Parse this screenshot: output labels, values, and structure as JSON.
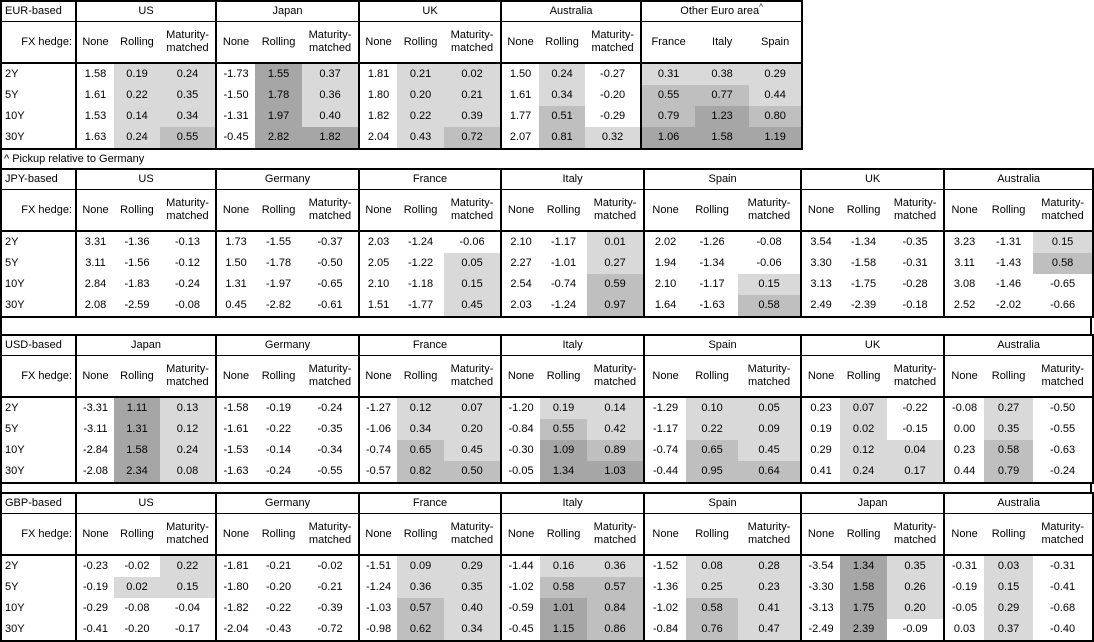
{
  "footnote": "^ Pickup relative to Germany",
  "fx_hedge_label": "FX hedge:",
  "tenors": [
    "2Y",
    "5Y",
    "10Y",
    "30Y"
  ],
  "default_hedge_cols": [
    "None",
    "Rolling",
    "Maturity-matched"
  ],
  "shade_colors": {
    "light": "#d9d9d9",
    "medium": "#bfbfbf",
    "dark": "#a6a6a6"
  },
  "tables": [
    {
      "base": "EUR-based",
      "groups": [
        {
          "name": "US",
          "rows": [
            [
              1.58,
              0.19,
              0.24
            ],
            [
              1.61,
              0.22,
              0.35
            ],
            [
              1.53,
              0.14,
              0.34
            ],
            [
              1.63,
              0.24,
              0.55
            ]
          ]
        },
        {
          "name": "Japan",
          "rows": [
            [
              -1.73,
              1.55,
              0.37
            ],
            [
              -1.5,
              1.78,
              0.36
            ],
            [
              -1.31,
              1.97,
              0.4
            ],
            [
              -0.45,
              2.82,
              1.82
            ]
          ]
        },
        {
          "name": "UK",
          "rows": [
            [
              1.81,
              0.21,
              0.02
            ],
            [
              1.8,
              0.2,
              0.21
            ],
            [
              1.82,
              0.22,
              0.39
            ],
            [
              2.04,
              0.43,
              0.72
            ]
          ]
        },
        {
          "name": "Australia",
          "rows": [
            [
              1.5,
              0.24,
              -0.27
            ],
            [
              1.61,
              0.34,
              -0.2
            ],
            [
              1.77,
              0.51,
              -0.29
            ],
            [
              2.07,
              0.81,
              0.32
            ]
          ]
        },
        {
          "name": "Other Euro area",
          "sup": "^",
          "cols": [
            "France",
            "Italy",
            "Spain"
          ],
          "equal_cols": true,
          "shade_all": true,
          "rows": [
            [
              0.31,
              0.38,
              0.29
            ],
            [
              0.55,
              0.77,
              0.44
            ],
            [
              0.79,
              1.23,
              0.8
            ],
            [
              1.06,
              1.58,
              1.19
            ]
          ]
        }
      ]
    },
    {
      "base": "JPY-based",
      "groups": [
        {
          "name": "US",
          "rows": [
            [
              3.31,
              -1.36,
              -0.13
            ],
            [
              3.11,
              -1.56,
              -0.12
            ],
            [
              2.84,
              -1.83,
              -0.24
            ],
            [
              2.08,
              -2.59,
              -0.08
            ]
          ]
        },
        {
          "name": "Germany",
          "rows": [
            [
              1.73,
              -1.55,
              -0.37
            ],
            [
              1.5,
              -1.78,
              -0.5
            ],
            [
              1.31,
              -1.97,
              -0.65
            ],
            [
              0.45,
              -2.82,
              -0.61
            ]
          ]
        },
        {
          "name": "France",
          "rows": [
            [
              2.03,
              -1.24,
              -0.06
            ],
            [
              2.05,
              -1.22,
              0.05
            ],
            [
              2.1,
              -1.18,
              0.15
            ],
            [
              1.51,
              -1.77,
              0.45
            ]
          ]
        },
        {
          "name": "Italy",
          "rows": [
            [
              2.1,
              -1.17,
              0.01
            ],
            [
              2.27,
              -1.01,
              0.27
            ],
            [
              2.54,
              -0.74,
              0.59
            ],
            [
              2.03,
              -1.24,
              0.97
            ]
          ]
        },
        {
          "name": "Spain",
          "rows": [
            [
              2.02,
              -1.26,
              -0.08
            ],
            [
              1.94,
              -1.34,
              -0.06
            ],
            [
              2.1,
              -1.17,
              0.15
            ],
            [
              1.64,
              -1.63,
              0.58
            ]
          ]
        },
        {
          "name": "UK",
          "rows": [
            [
              3.54,
              -1.34,
              -0.35
            ],
            [
              3.3,
              -1.58,
              -0.31
            ],
            [
              3.13,
              -1.75,
              -0.28
            ],
            [
              2.49,
              -2.39,
              -0.18
            ]
          ]
        },
        {
          "name": "Australia",
          "rows": [
            [
              3.23,
              -1.31,
              0.15
            ],
            [
              3.11,
              -1.43,
              0.58
            ],
            [
              3.08,
              -1.46,
              -0.65
            ],
            [
              2.52,
              -2.02,
              -0.66
            ]
          ]
        }
      ]
    },
    {
      "base": "USD-based",
      "groups": [
        {
          "name": "Japan",
          "rows": [
            [
              -3.31,
              1.11,
              0.13
            ],
            [
              -3.11,
              1.31,
              0.12
            ],
            [
              -2.84,
              1.58,
              0.24
            ],
            [
              -2.08,
              2.34,
              0.08
            ]
          ]
        },
        {
          "name": "Germany",
          "rows": [
            [
              -1.58,
              -0.19,
              -0.24
            ],
            [
              -1.61,
              -0.22,
              -0.35
            ],
            [
              -1.53,
              -0.14,
              -0.34
            ],
            [
              -1.63,
              -0.24,
              -0.55
            ]
          ]
        },
        {
          "name": "France",
          "rows": [
            [
              -1.27,
              0.12,
              0.07
            ],
            [
              -1.06,
              0.34,
              0.2
            ],
            [
              -0.74,
              0.65,
              0.45
            ],
            [
              -0.57,
              0.82,
              0.5
            ]
          ]
        },
        {
          "name": "Italy",
          "rows": [
            [
              -1.2,
              0.19,
              0.14
            ],
            [
              -0.84,
              0.55,
              0.42
            ],
            [
              -0.3,
              1.09,
              0.89
            ],
            [
              -0.05,
              1.34,
              1.03
            ]
          ]
        },
        {
          "name": "Spain",
          "rows": [
            [
              -1.29,
              0.1,
              0.05
            ],
            [
              -1.17,
              0.22,
              0.09
            ],
            [
              -0.74,
              0.65,
              0.45
            ],
            [
              -0.44,
              0.95,
              0.64
            ]
          ]
        },
        {
          "name": "UK",
          "rows": [
            [
              0.23,
              0.07,
              -0.22
            ],
            [
              0.19,
              0.02,
              -0.15
            ],
            [
              0.29,
              0.12,
              0.04
            ],
            [
              0.41,
              0.24,
              0.17
            ]
          ]
        },
        {
          "name": "Australia",
          "rows": [
            [
              -0.08,
              0.27,
              -0.5
            ],
            [
              0.0,
              0.35,
              -0.55
            ],
            [
              0.23,
              0.58,
              -0.63
            ],
            [
              0.44,
              0.79,
              -0.24
            ]
          ]
        }
      ]
    },
    {
      "base": "GBP-based",
      "groups": [
        {
          "name": "US",
          "rows": [
            [
              -0.23,
              -0.02,
              0.22
            ],
            [
              -0.19,
              0.02,
              0.15
            ],
            [
              -0.29,
              -0.08,
              -0.04
            ],
            [
              -0.41,
              -0.2,
              -0.17
            ]
          ]
        },
        {
          "name": "Germany",
          "rows": [
            [
              -1.81,
              -0.21,
              -0.02
            ],
            [
              -1.8,
              -0.2,
              -0.21
            ],
            [
              -1.82,
              -0.22,
              -0.39
            ],
            [
              -2.04,
              -0.43,
              -0.72
            ]
          ]
        },
        {
          "name": "France",
          "rows": [
            [
              -1.51,
              0.09,
              0.29
            ],
            [
              -1.24,
              0.36,
              0.35
            ],
            [
              -1.03,
              0.57,
              0.4
            ],
            [
              -0.98,
              0.62,
              0.34
            ]
          ]
        },
        {
          "name": "Italy",
          "rows": [
            [
              -1.44,
              0.16,
              0.36
            ],
            [
              -1.02,
              0.58,
              0.57
            ],
            [
              -0.59,
              1.01,
              0.84
            ],
            [
              -0.45,
              1.15,
              0.86
            ]
          ]
        },
        {
          "name": "Spain",
          "rows": [
            [
              -1.52,
              0.08,
              0.28
            ],
            [
              -1.36,
              0.25,
              0.23
            ],
            [
              -1.02,
              0.58,
              0.41
            ],
            [
              -0.84,
              0.76,
              0.47
            ]
          ]
        },
        {
          "name": "Japan",
          "rows": [
            [
              -3.54,
              1.34,
              0.35
            ],
            [
              -3.3,
              1.58,
              0.26
            ],
            [
              -3.13,
              1.75,
              0.2
            ],
            [
              -2.49,
              2.39,
              -0.09
            ]
          ]
        },
        {
          "name": "Australia",
          "rows": [
            [
              -0.31,
              0.03,
              -0.31
            ],
            [
              -0.19,
              0.15,
              -0.41
            ],
            [
              -0.05,
              0.29,
              -0.68
            ],
            [
              0.03,
              0.37,
              -0.4
            ]
          ]
        }
      ]
    }
  ]
}
